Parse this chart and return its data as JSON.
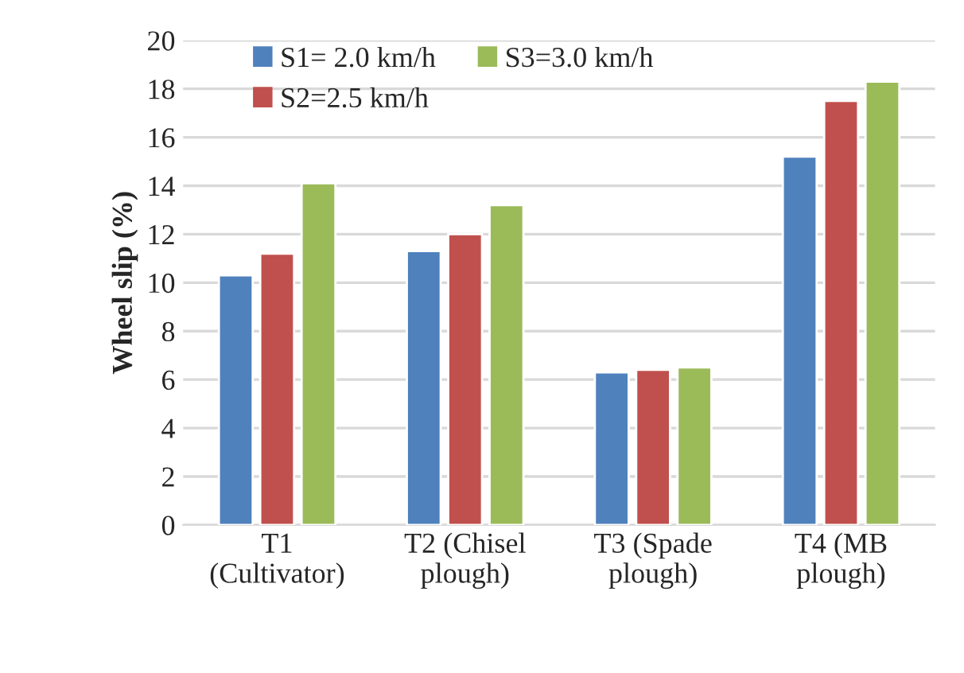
{
  "chart_data": {
    "type": "bar",
    "ylabel": "Wheel slip (%)",
    "categories": [
      "T1\n(Cultivator)",
      "T2 (Chisel\nplough)",
      "T3 (Spade\nplough)",
      "T4 (MB\nplough)"
    ],
    "series": [
      {
        "name": "S1= 2.0 km/h",
        "color": "#4f81bd",
        "values": [
          10.3,
          11.3,
          6.3,
          15.2
        ]
      },
      {
        "name": "S2=2.5 km/h",
        "color": "#c0504d",
        "values": [
          11.2,
          12.0,
          6.4,
          17.5
        ]
      },
      {
        "name": "S3=3.0 km/h",
        "color": "#9bbb59",
        "values": [
          14.1,
          13.2,
          6.5,
          18.3
        ]
      }
    ],
    "ylim": [
      0,
      20
    ],
    "yticks": [
      0,
      2,
      4,
      6,
      8,
      10,
      12,
      14,
      16,
      18,
      20
    ],
    "grid": "y",
    "legend": "top"
  }
}
